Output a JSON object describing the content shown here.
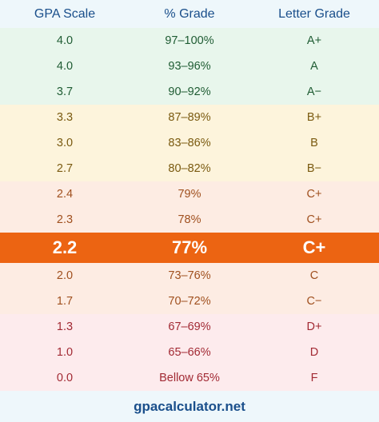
{
  "header": {
    "col1": "GPA Scale",
    "col2": "% Grade",
    "col3": "Letter Grade"
  },
  "rows": [
    {
      "gpa": "4.0",
      "percent": "97–100%",
      "letter": "A+",
      "group": "green"
    },
    {
      "gpa": "4.0",
      "percent": "93–96%",
      "letter": "A",
      "group": "green"
    },
    {
      "gpa": "3.7",
      "percent": "90–92%",
      "letter": "A−",
      "group": "green"
    },
    {
      "gpa": "3.3",
      "percent": "87–89%",
      "letter": "B+",
      "group": "yellow"
    },
    {
      "gpa": "3.0",
      "percent": "83–86%",
      "letter": "B",
      "group": "yellow"
    },
    {
      "gpa": "2.7",
      "percent": "80–82%",
      "letter": "B−",
      "group": "yellow"
    },
    {
      "gpa": "2.4",
      "percent": "79%",
      "letter": "C+",
      "group": "orange"
    },
    {
      "gpa": "2.3",
      "percent": "78%",
      "letter": "C+",
      "group": "orange"
    },
    {
      "gpa": "2.2",
      "percent": "77%",
      "letter": "C+",
      "group": "highlight"
    },
    {
      "gpa": "2.0",
      "percent": "73–76%",
      "letter": "C",
      "group": "orange"
    },
    {
      "gpa": "1.7",
      "percent": "70–72%",
      "letter": "C−",
      "group": "orange"
    },
    {
      "gpa": "1.3",
      "percent": "67–69%",
      "letter": "D+",
      "group": "red"
    },
    {
      "gpa": "1.0",
      "percent": "65–66%",
      "letter": "D",
      "group": "red"
    },
    {
      "gpa": "0.0",
      "percent": "Bellow 65%",
      "letter": "F",
      "group": "red"
    }
  ],
  "footer": {
    "text": "gpacalculator.net"
  },
  "colors": {
    "header_bg": "#eef7fb",
    "header_text": "#1a4f8b",
    "green_bg": "#e8f6ec",
    "yellow_bg": "#fdf4dc",
    "orange_bg": "#fdece3",
    "red_bg": "#fdebed",
    "highlight_bg": "#ec6412"
  }
}
